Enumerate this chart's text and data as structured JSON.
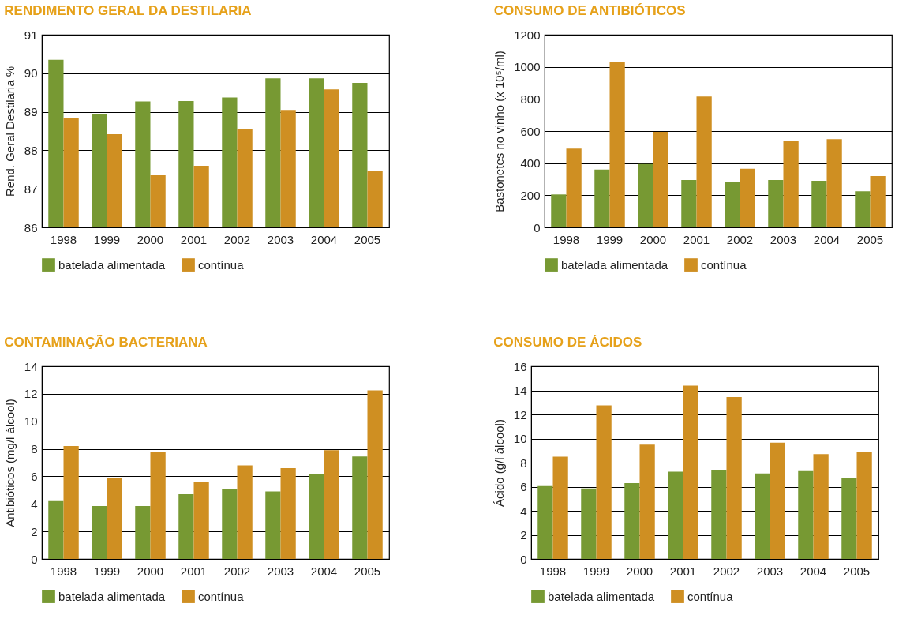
{
  "chart_data": [
    {
      "type": "bar",
      "title": "RENDIMENTO GERAL DA DESTILARIA",
      "ylabel": "Rend. Geral Destilaria %",
      "categories": [
        "1998",
        "1999",
        "2000",
        "2001",
        "2002",
        "2003",
        "2004",
        "2005"
      ],
      "series": [
        {
          "name": "batelada alimentada",
          "color": "#779933",
          "values": [
            90.35,
            88.95,
            89.27,
            89.28,
            89.37,
            89.87,
            89.87,
            89.75
          ]
        },
        {
          "name": "contínua",
          "color": "#cf8f22",
          "values": [
            88.83,
            88.42,
            87.35,
            87.6,
            88.55,
            89.05,
            89.58,
            87.47
          ]
        }
      ],
      "ylim": [
        86,
        91
      ],
      "yticks": [
        86,
        87,
        88,
        89,
        90,
        91
      ],
      "grid": "y",
      "legend": "bottom"
    },
    {
      "type": "bar",
      "title": "CONSUMO DE ANTIBIÓTICOS",
      "ylabel": "Bastonetes no vinho (x 10⁵/ml)",
      "categories": [
        "1998",
        "1999",
        "2000",
        "2001",
        "2002",
        "2003",
        "2004",
        "2005"
      ],
      "series": [
        {
          "name": "batelada alimentada",
          "color": "#779933",
          "values": [
            205,
            360,
            395,
            295,
            280,
            295,
            290,
            225
          ]
        },
        {
          "name": "contínua",
          "color": "#cf8f22",
          "values": [
            490,
            1030,
            595,
            815,
            365,
            540,
            550,
            320
          ]
        }
      ],
      "ylim": [
        0,
        1200
      ],
      "yticks": [
        0,
        200,
        400,
        600,
        800,
        1000,
        1200
      ],
      "grid": "y",
      "legend": "bottom"
    },
    {
      "type": "bar",
      "title": "CONTAMINAÇÃO BACTERIANA",
      "ylabel": "Antibióticos (mg/l álcool)",
      "categories": [
        "1998",
        "1999",
        "2000",
        "2001",
        "2002",
        "2003",
        "2004",
        "2005"
      ],
      "series": [
        {
          "name": "batelada alimentada",
          "color": "#779933",
          "values": [
            4.2,
            3.85,
            3.85,
            4.7,
            5.05,
            4.9,
            6.2,
            7.45
          ]
        },
        {
          "name": "contínua",
          "color": "#cf8f22",
          "values": [
            8.2,
            5.85,
            7.8,
            5.6,
            6.8,
            6.6,
            7.9,
            12.25
          ]
        }
      ],
      "ylim": [
        0,
        14
      ],
      "yticks": [
        0,
        2,
        4,
        6,
        8,
        10,
        12,
        14
      ],
      "grid": "y",
      "legend": "bottom"
    },
    {
      "type": "bar",
      "title": "CONSUMO DE ÁCIDOS",
      "ylabel": "Ácido (g/l álcool)",
      "categories": [
        "1998",
        "1999",
        "2000",
        "2001",
        "2002",
        "2003",
        "2004",
        "2005"
      ],
      "series": [
        {
          "name": "batelada alimentada",
          "color": "#779933",
          "values": [
            6.05,
            5.85,
            6.3,
            7.25,
            7.35,
            7.1,
            7.3,
            6.7
          ]
        },
        {
          "name": "contínua",
          "color": "#cf8f22",
          "values": [
            8.5,
            12.75,
            9.5,
            14.4,
            13.45,
            9.65,
            8.7,
            8.9
          ]
        }
      ],
      "ylim": [
        0,
        16
      ],
      "yticks": [
        0,
        2,
        4,
        6,
        8,
        10,
        12,
        14,
        16
      ],
      "grid": "y",
      "legend": "bottom"
    }
  ]
}
